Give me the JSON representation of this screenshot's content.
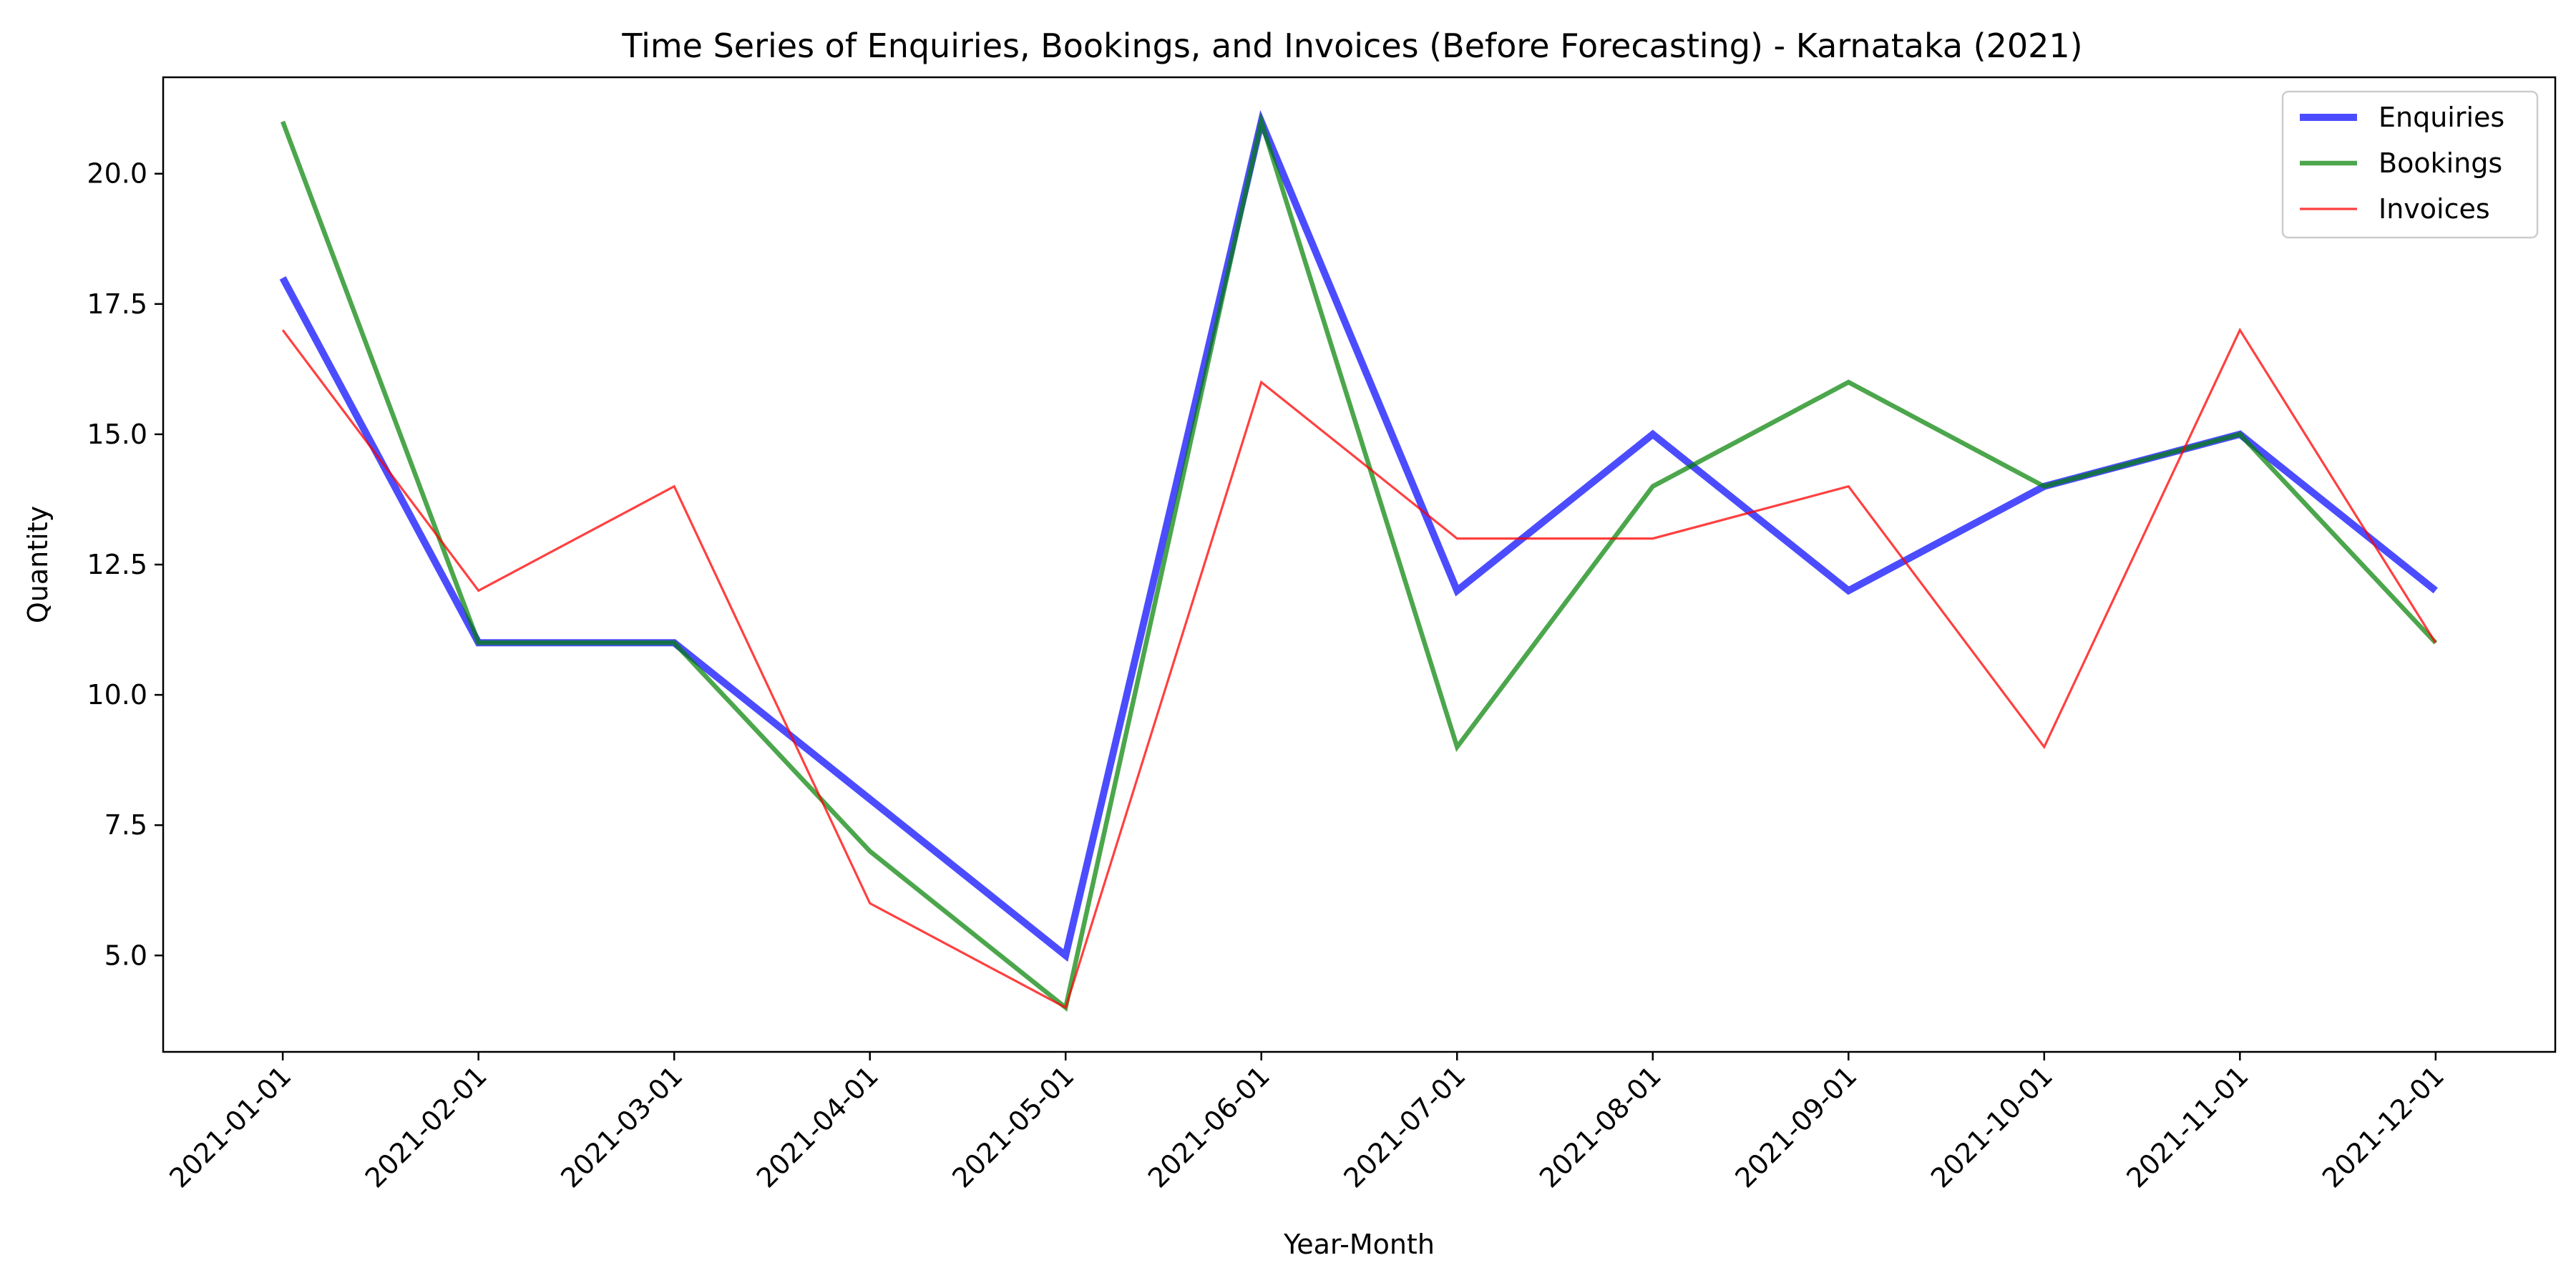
{
  "chart_data": {
    "type": "line",
    "title": "Time Series of Enquiries, Bookings, and Invoices (Before Forecasting) - Karnataka (2021)",
    "xlabel": "Year-Month",
    "ylabel": "Quantity",
    "x": [
      "2021-01-01",
      "2021-02-01",
      "2021-03-01",
      "2021-04-01",
      "2021-05-01",
      "2021-06-01",
      "2021-07-01",
      "2021-08-01",
      "2021-09-01",
      "2021-10-01",
      "2021-11-01",
      "2021-12-01"
    ],
    "ylim": [
      3.15,
      21.85
    ],
    "yticks": [
      5.0,
      7.5,
      10.0,
      12.5,
      15.0,
      17.5,
      20.0
    ],
    "ytick_labels": [
      "5.0",
      "7.5",
      "10.0",
      "12.5",
      "15.0",
      "17.5",
      "20.0"
    ],
    "grid": false,
    "legend_position": "top-right",
    "series": [
      {
        "name": "Enquiries",
        "color": "#0000ff",
        "values": [
          18,
          11,
          11,
          8,
          5,
          21,
          12,
          15,
          12,
          14,
          15,
          12
        ]
      },
      {
        "name": "Bookings",
        "color": "#008000",
        "values": [
          21,
          11,
          11,
          7,
          4,
          21,
          9,
          14,
          16,
          14,
          15,
          11
        ]
      },
      {
        "name": "Invoices",
        "color": "#ff0000",
        "values": [
          17,
          12,
          14,
          6,
          4,
          16,
          13,
          13,
          14,
          9,
          17,
          11
        ]
      }
    ]
  }
}
